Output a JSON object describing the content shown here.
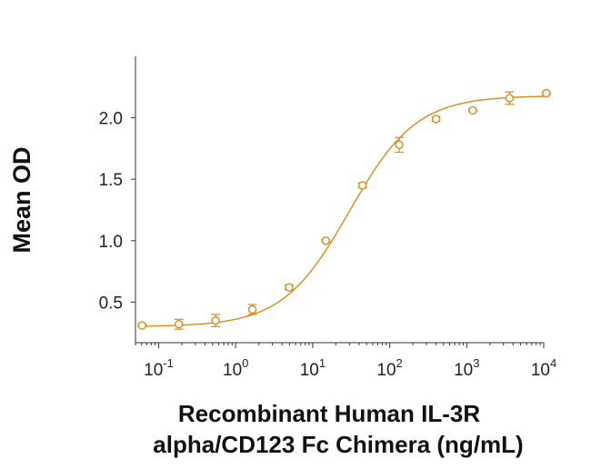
{
  "chart_data": {
    "type": "scatter",
    "ylabel": "Mean OD",
    "xlabel_lines": [
      "Recombinant Human IL-3R",
      "alpha/CD123 Fc Chimera (ng/mL)"
    ],
    "x_scale": "log10",
    "xlim": [
      0.05,
      10000
    ],
    "ylim": [
      0.17,
      2.5
    ],
    "x_ticks": [
      {
        "value": 0.1,
        "base": "10",
        "exp": "-1"
      },
      {
        "value": 1,
        "base": "10",
        "exp": "0"
      },
      {
        "value": 10,
        "base": "10",
        "exp": "1"
      },
      {
        "value": 100,
        "base": "10",
        "exp": "2"
      },
      {
        "value": 1000,
        "base": "10",
        "exp": "3"
      },
      {
        "value": 10000,
        "base": "10",
        "exp": "4"
      }
    ],
    "y_ticks": [
      {
        "value": 0.5,
        "label": "0.5"
      },
      {
        "value": 1.0,
        "label": "1.0"
      },
      {
        "value": 1.5,
        "label": "1.5"
      },
      {
        "value": 2.0,
        "label": "2.0"
      }
    ],
    "series": [
      {
        "color": "#D98A1A",
        "points": [
          {
            "x": 0.061,
            "y": 0.31,
            "err": 0.01
          },
          {
            "x": 0.183,
            "y": 0.32,
            "err": 0.04
          },
          {
            "x": 0.549,
            "y": 0.35,
            "err": 0.05
          },
          {
            "x": 1.65,
            "y": 0.44,
            "err": 0.04
          },
          {
            "x": 4.94,
            "y": 0.62,
            "err": 0.02
          },
          {
            "x": 14.8,
            "y": 1.0,
            "err": 0.01
          },
          {
            "x": 44.4,
            "y": 1.45,
            "err": 0.02
          },
          {
            "x": 133,
            "y": 1.78,
            "err": 0.06
          },
          {
            "x": 400,
            "y": 1.99,
            "err": 0.02
          },
          {
            "x": 1200,
            "y": 2.06,
            "err": 0.01
          },
          {
            "x": 3600,
            "y": 2.16,
            "err": 0.05
          },
          {
            "x": 10800,
            "y": 2.2,
            "err": 0.01
          }
        ],
        "fit": {
          "model": "4PL",
          "bottom": 0.3,
          "top": 2.18,
          "ec50": 30,
          "hill": 1.0
        }
      }
    ],
    "grid": false,
    "legend": "none"
  }
}
